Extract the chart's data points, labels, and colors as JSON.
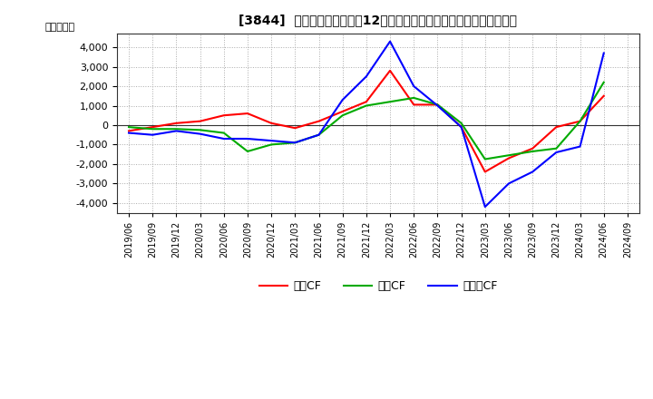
{
  "title": "[3844]  キャッシュフローの12か月移動合計の対前年同期増減額の推移",
  "ylabel": "（百万円）",
  "background_color": "#ffffff",
  "grid_color": "#aaaaaa",
  "ylim": [
    -4500,
    4700
  ],
  "yticks": [
    -4000,
    -3000,
    -2000,
    -1000,
    0,
    1000,
    2000,
    3000,
    4000
  ],
  "x_labels": [
    "2019/06",
    "2019/09",
    "2019/12",
    "2020/03",
    "2020/06",
    "2020/09",
    "2020/12",
    "2021/03",
    "2021/06",
    "2021/09",
    "2021/12",
    "2022/03",
    "2022/06",
    "2022/09",
    "2022/12",
    "2023/03",
    "2023/06",
    "2023/09",
    "2023/12",
    "2024/03",
    "2024/06",
    "2024/09"
  ],
  "series": {
    "営業CF": {
      "color": "#ff0000",
      "values": [
        -300,
        -100,
        100,
        200,
        500,
        600,
        100,
        -150,
        200,
        700,
        1200,
        2800,
        1050,
        1050,
        -100,
        -2400,
        -1700,
        -1200,
        -100,
        200,
        1500,
        null
      ]
    },
    "投資CF": {
      "color": "#00aa00",
      "values": [
        -100,
        -200,
        -200,
        -250,
        -400,
        -1350,
        -1000,
        -900,
        -500,
        500,
        1000,
        1200,
        1400,
        1050,
        100,
        -1750,
        -1550,
        -1350,
        -1200,
        200,
        2200,
        null
      ]
    },
    "フリーCF": {
      "color": "#0000ff",
      "values": [
        -400,
        -500,
        -300,
        -450,
        -700,
        -700,
        -800,
        -900,
        -500,
        1300,
        2500,
        4300,
        2000,
        1000,
        -100,
        -4200,
        -3000,
        -2400,
        -1400,
        -1100,
        3700,
        null
      ]
    }
  },
  "legend_labels": [
    "営業CF",
    "投資CF",
    "フリーCF"
  ]
}
